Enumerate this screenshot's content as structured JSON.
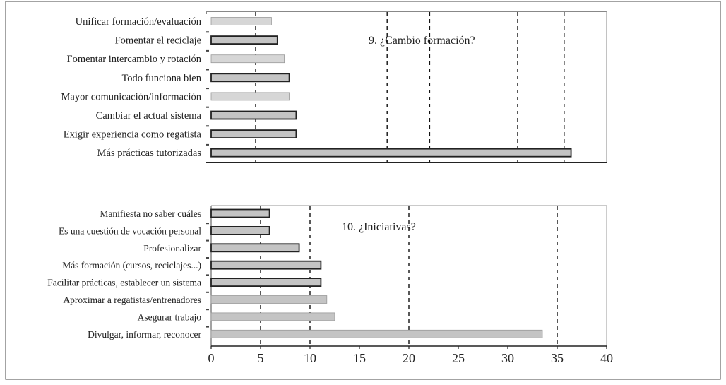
{
  "chart_data": [
    {
      "type": "bar",
      "orientation": "horizontal",
      "title": "9. ¿Cambio formación?",
      "categories": [
        "Unificar formación/evaluación",
        "Fomentar el reciclaje",
        "Fomentar intercambio y rotación",
        "Todo funciona bien",
        "Mayor comunicación/información",
        "Cambiar el actual sistema",
        "Exigir experiencia como regatista",
        "Más prácticas tutorizadas"
      ],
      "values": [
        6.1,
        6.7,
        7.4,
        7.9,
        7.9,
        8.6,
        8.6,
        36.4
      ],
      "bar_colors": [
        "#d6d6d6",
        "#c4c4c4",
        "#d6d6d6",
        "#c4c4c4",
        "#d6d6d6",
        "#c4c4c4",
        "#c4c4c4",
        "#c4c4c4"
      ],
      "bar_outline": [
        false,
        true,
        false,
        true,
        false,
        true,
        true,
        true
      ],
      "xlim": [
        0,
        40
      ],
      "gridlines": [
        4.5,
        17.8,
        22.1,
        31,
        35.7
      ],
      "grid": "dashed vertical"
    },
    {
      "type": "bar",
      "orientation": "horizontal",
      "title": "10. ¿Iniciativas?",
      "categories": [
        "Manifiesta no saber cuáles",
        "Es una cuestión de vocación personal",
        "Profesionalizar",
        "Más formación (cursos, reciclajes...)",
        "Facilitar prácticas, establecer un sistema",
        "Aproximar a regatistas/entrenadores",
        "Asegurar trabajo",
        "Divulgar, informar, reconocer"
      ],
      "values": [
        5.9,
        5.9,
        8.9,
        11.1,
        11.1,
        11.7,
        12.5,
        33.5
      ],
      "bar_colors": [
        "#c4c4c4",
        "#c4c4c4",
        "#c4c4c4",
        "#c4c4c4",
        "#c4c4c4",
        "#c4c4c4",
        "#c4c4c4",
        "#c4c4c4"
      ],
      "bar_outline": [
        true,
        true,
        true,
        true,
        true,
        false,
        false,
        false
      ],
      "xlim": [
        0,
        40
      ],
      "xticks": [
        "0",
        "5",
        "10",
        "15",
        "20",
        "25",
        "30",
        "35",
        "40"
      ],
      "gridlines": [
        5,
        10,
        20,
        35
      ],
      "grid": "dashed vertical"
    }
  ]
}
